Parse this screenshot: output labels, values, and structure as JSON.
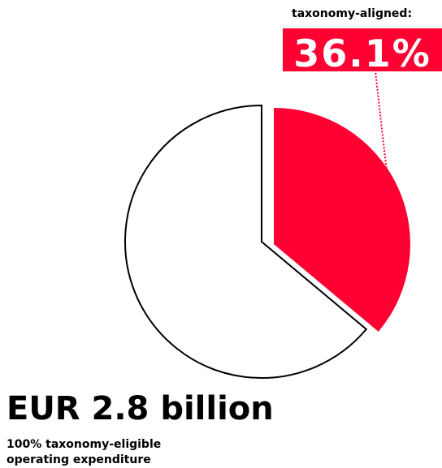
{
  "chart_data": {
    "type": "pie",
    "categories": [
      "taxonomy-aligned:",
      null
    ],
    "values": [
      36.1,
      63.9
    ],
    "value_labels": [
      "36.1%",
      null
    ],
    "colors": [
      "#ff0033",
      "#ffffff"
    ],
    "exploded": [
      true,
      false
    ],
    "total": "EUR 2.8 billion",
    "note_lines": [
      "100% taxonomy-eligible",
      "operating expenditure"
    ]
  }
}
